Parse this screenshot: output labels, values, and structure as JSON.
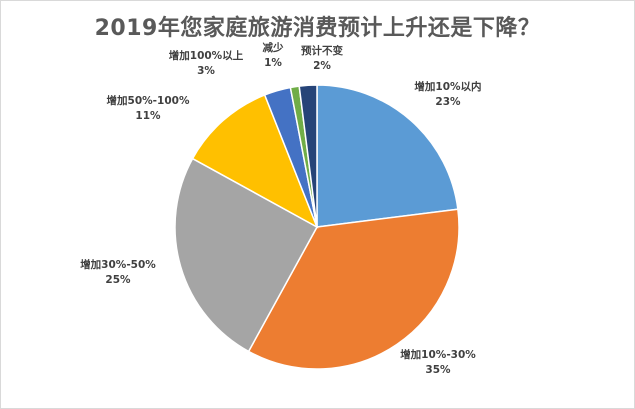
{
  "chart_data": {
    "type": "pie",
    "title": "2019年您家庭旅游消费预计上升还是下降？",
    "categories": [
      "增加10%以内",
      "增加10%-30%",
      "增加30%-50%",
      "增加50%-100%",
      "增加100%以上",
      "减少",
      "预计不变"
    ],
    "values": [
      23,
      35,
      25,
      11,
      3,
      1,
      2
    ],
    "value_labels": [
      "23%",
      "35%",
      "25%",
      "11%",
      "3%",
      "1%",
      "2%"
    ],
    "colors": [
      "#5b9bd5",
      "#ed7d31",
      "#a5a5a5",
      "#ffc000",
      "#4472c4",
      "#70ad47",
      "#264478"
    ],
    "start_angle_deg": 0,
    "direction": "clockwise",
    "legend": "none"
  }
}
